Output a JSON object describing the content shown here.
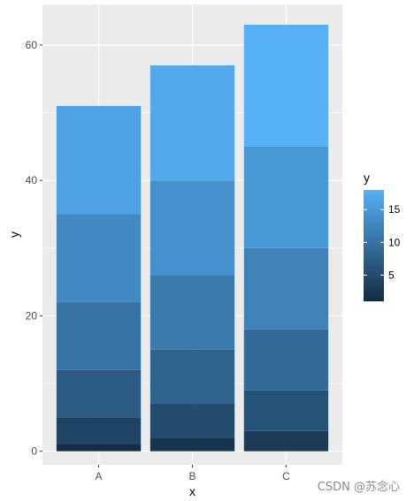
{
  "chart_data": {
    "type": "bar",
    "stacked": true,
    "categories": [
      "A",
      "B",
      "C"
    ],
    "segments": [
      [
        1,
        4,
        7,
        10,
        13,
        16
      ],
      [
        2,
        5,
        8,
        11,
        14,
        17
      ],
      [
        3,
        6,
        9,
        12,
        15,
        18
      ]
    ],
    "totals": [
      51,
      57,
      63
    ],
    "xlabel": "x",
    "ylabel": "y",
    "ylim": [
      -2,
      66
    ],
    "yticks": [
      0,
      20,
      40,
      60
    ],
    "grid": true,
    "legend": {
      "title": "y",
      "placement": "right",
      "type": "colorbar",
      "range": [
        1,
        18
      ],
      "ticks": [
        5,
        10,
        15
      ],
      "low_color": "#132B43",
      "high_color": "#56B1F7"
    }
  },
  "watermark": "CSDN @苏念心"
}
